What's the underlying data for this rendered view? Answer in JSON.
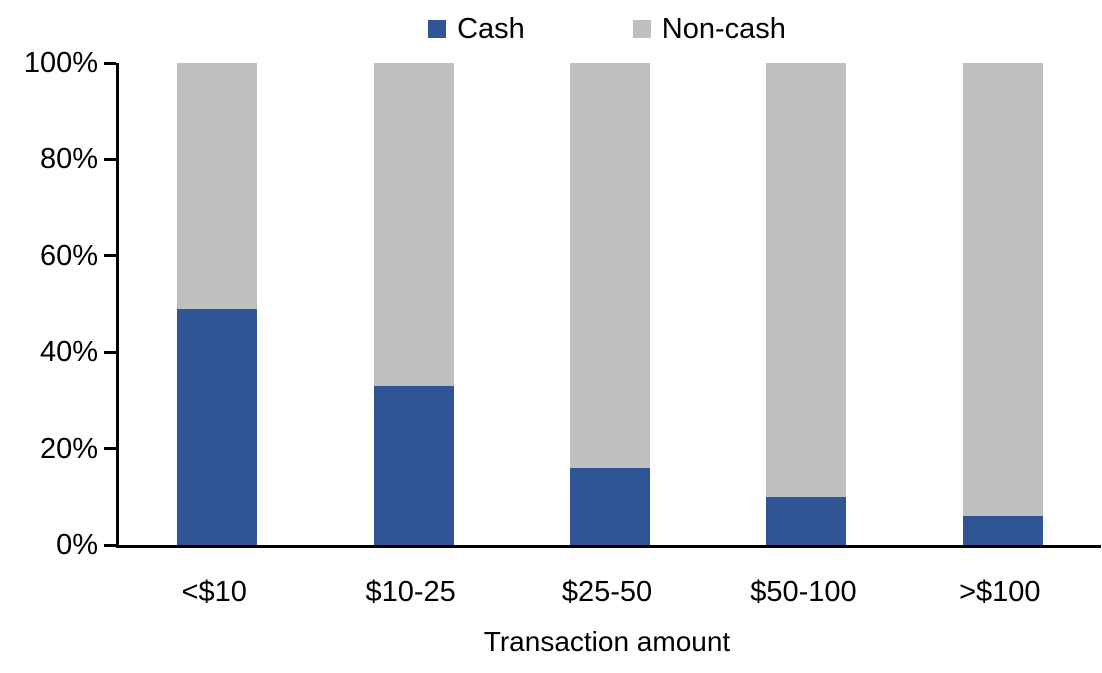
{
  "chart_data": {
    "type": "bar",
    "subtype": "stacked-100-percent",
    "title": "",
    "xlabel": "Transaction amount",
    "ylabel": "",
    "categories": [
      "<$10",
      "$10-25",
      "$25-50",
      "$50-100",
      ">$100"
    ],
    "series": [
      {
        "name": "Cash",
        "color": "#2F5597",
        "values": [
          49,
          33,
          16,
          10,
          6
        ]
      },
      {
        "name": "Non-cash",
        "color": "#BFBFBF",
        "values": [
          51,
          67,
          84,
          90,
          94
        ]
      }
    ],
    "ylim": [
      0,
      100
    ],
    "yticks": [
      "0%",
      "20%",
      "40%",
      "60%",
      "80%",
      "100%"
    ],
    "grid": "off",
    "legend_position": "top-center",
    "axis_color": "#000000",
    "background_color": "#FFFFFF"
  }
}
